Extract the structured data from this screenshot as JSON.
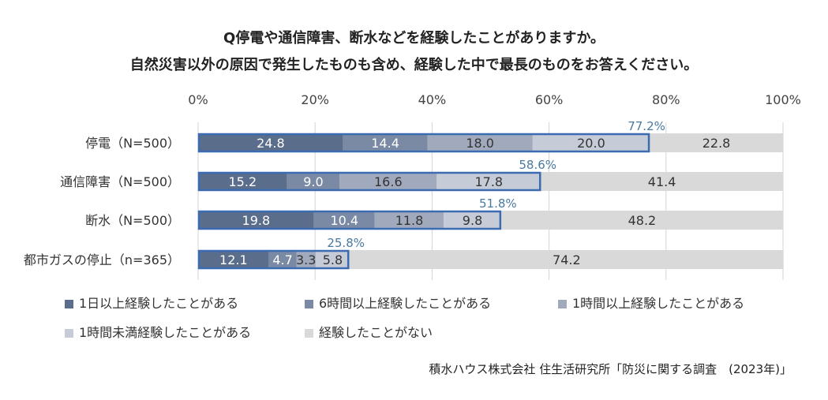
{
  "title_line1": "Q停電や通信障害、断水などを経験したことがありますか。",
  "title_line2": "自然災害以外の原因で発生したものも含め、経験した中で最長のものをお答えください。",
  "source": "積水ハウス株式会社 住生活研究所「防災に関する調査　(2023年)」",
  "chart_data": {
    "type": "bar",
    "orientation": "horizontal",
    "stacked": true,
    "x_ticks": [
      "0%",
      "20%",
      "40%",
      "60%",
      "80%",
      "100%"
    ],
    "xlim": [
      0,
      100
    ],
    "grid": true,
    "legend_position": "bottom",
    "categories": [
      "停電（N=500）",
      "通信障害（N=500）",
      "断水（N=500）",
      "都市ガスの停止（n=365）"
    ],
    "series": [
      {
        "name": "1日以上経験したことがある",
        "color": "#5a6e8c",
        "values": [
          24.8,
          15.2,
          19.8,
          12.1
        ],
        "labels": [
          "24.8",
          "15.2",
          "19.8",
          "12.1"
        ]
      },
      {
        "name": "6時間以上経験したことがある",
        "color": "#7a8aa4",
        "values": [
          14.4,
          9.0,
          10.4,
          4.7
        ],
        "labels": [
          "14.4",
          "9.0",
          "10.4",
          "4.7"
        ]
      },
      {
        "name": "1時間以上経験したことがある",
        "color": "#a0aabc",
        "values": [
          18.0,
          16.6,
          11.8,
          3.3
        ],
        "labels": [
          "18.0",
          "16.6",
          "11.8",
          "3.3"
        ]
      },
      {
        "name": "1時間未満経験したことがある",
        "color": "#c6cbd8",
        "values": [
          20.0,
          17.8,
          9.8,
          5.8
        ],
        "labels": [
          "20.0",
          "17.8",
          "9.8",
          "5.8"
        ]
      },
      {
        "name": "経験したことがない",
        "color": "#d9d9d9",
        "values": [
          22.8,
          41.4,
          48.2,
          74.2
        ],
        "labels": [
          "22.8",
          "41.4",
          "48.2",
          "74.2"
        ]
      }
    ],
    "experienced_totals": [
      77.2,
      58.6,
      51.8,
      25.8
    ],
    "experienced_total_labels": [
      "77.2%",
      "58.6%",
      "51.8%",
      "25.8%"
    ],
    "outline_color": "#3b6bb0",
    "total_label_color": "#4a7aa0",
    "label_color_dark_segments": "#ffffff",
    "label_color_light_segments": "#333333"
  }
}
